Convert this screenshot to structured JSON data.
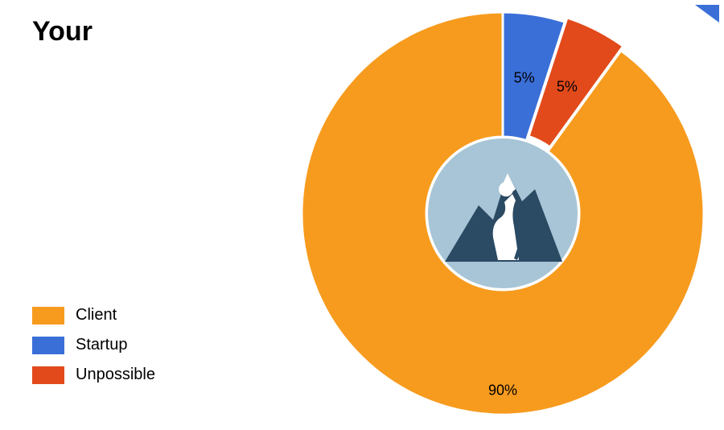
{
  "title": "Your",
  "chart": {
    "type": "pie",
    "start_angle_deg": -90,
    "slices": [
      {
        "name": "startup",
        "value": 5,
        "label": "5%",
        "color": "#3a6fd8",
        "explode": 0
      },
      {
        "name": "unpossible",
        "value": 5,
        "label": "5%",
        "color": "#e24a1b",
        "explode": 6
      },
      {
        "name": "client",
        "value": 90,
        "label": "90%",
        "color": "#f79b1e",
        "explode": 0
      }
    ],
    "outer_radius": 250,
    "inner_radius": 95,
    "gap_color": "#ffffff",
    "gap_width": 3,
    "background": "#ffffff",
    "center_icon": {
      "bg_color": "#a7c5d6",
      "fg_color": "#2b4a63",
      "accent_color": "#ffffff"
    },
    "label_fontsize": 18,
    "label_radius": 170
  },
  "legend": {
    "items": [
      {
        "label": "Client",
        "color": "#f79b1e"
      },
      {
        "label": "Startup",
        "color": "#3a6fd8"
      },
      {
        "label": "Unpossible",
        "color": "#e24a1b"
      }
    ],
    "swatch_w": 40,
    "swatch_h": 22,
    "fontsize": 20
  },
  "corner_marker_color": "#3a6fd8"
}
